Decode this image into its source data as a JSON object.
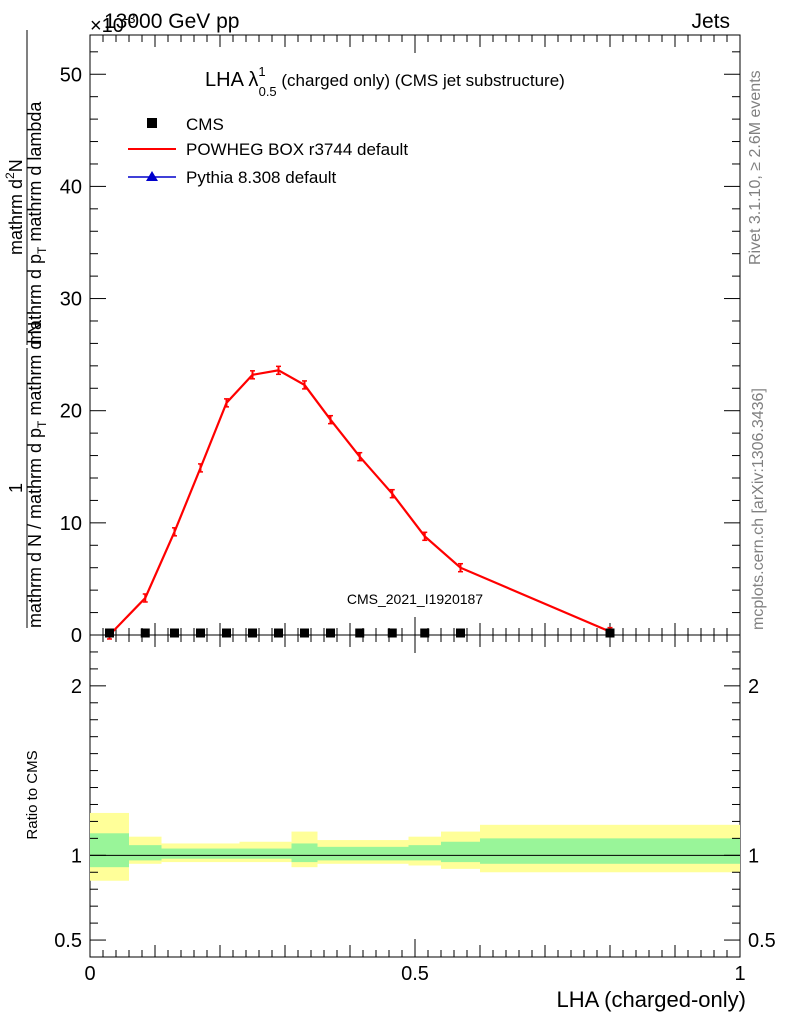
{
  "header": {
    "left": "13000 GeV pp",
    "right": "Jets",
    "exponent_label": "×10",
    "exponent_power": "-3"
  },
  "side_labels": {
    "rivet": "Rivet 3.1.10, ≥ 2.6M events",
    "mcplots": "mcplots.cern.ch [arXiv:1306.3436]"
  },
  "watermark": "CMS_2021_I1920187",
  "title": {
    "main": "LHA λ",
    "sup": "1",
    "sub": "0.5",
    "rest": " (charged only) (CMS jet substructure)"
  },
  "legend": {
    "cms": "CMS",
    "powheg": "POWHEG BOX r3744 default",
    "pythia": "Pythia 8.308 default"
  },
  "y_axis_title": {
    "numerator": "1",
    "denominator": "mathrm d N / mathrm d p",
    "denominator_sub": "T",
    "denominator_rest": " mathrm d N",
    "main_num": "mathrm d",
    "main_num_sup": "2",
    "main_num_rest": "N",
    "main_den": "mathrm d p",
    "main_den_sub": "T",
    "main_den_rest": " mathrm d lambda"
  },
  "ratio_axis_title": "Ratio to CMS",
  "x_axis_title": "LHA (charged-only)",
  "chart_data": [
    {
      "type": "line",
      "panel": "main",
      "xlim": [
        0,
        1
      ],
      "ylim": [
        0,
        53.5
      ],
      "y_scale_factor": "×10^-3",
      "y_ticks": [
        0,
        10,
        20,
        30,
        40,
        50
      ],
      "x_ticks": [
        0,
        0.5,
        1
      ],
      "series": [
        {
          "name": "POWHEG BOX r3744 default",
          "color": "#ff0000",
          "x": [
            0.03,
            0.085,
            0.13,
            0.17,
            0.21,
            0.25,
            0.29,
            0.33,
            0.37,
            0.415,
            0.465,
            0.515,
            0.57,
            0.8
          ],
          "y": [
            0.0,
            3.3,
            9.2,
            14.9,
            20.7,
            23.2,
            23.6,
            22.3,
            19.2,
            15.9,
            12.6,
            8.8,
            6.0,
            0.3
          ]
        },
        {
          "name": "Pythia 8.308 default",
          "color": "#0000ff",
          "x": [],
          "y": []
        },
        {
          "name": "CMS",
          "color": "#000000",
          "x": [
            0.03,
            0.085,
            0.13,
            0.17,
            0.21,
            0.25,
            0.29,
            0.33,
            0.37,
            0.415,
            0.465,
            0.515,
            0.57,
            0.8
          ],
          "y": [
            0,
            0,
            0,
            0,
            0,
            0,
            0,
            0,
            0,
            0,
            0,
            0,
            0,
            0
          ]
        }
      ]
    },
    {
      "type": "area",
      "panel": "ratio",
      "xlim": [
        0,
        1
      ],
      "ylim": [
        0.4,
        2.3
      ],
      "y_ticks": [
        0.5,
        1,
        2
      ],
      "x_ticks": [
        0,
        0.5,
        1
      ],
      "reference_line": 1,
      "bands": [
        {
          "x0": 0.0,
          "x1": 0.06,
          "yellow": [
            0.85,
            1.25
          ],
          "green": [
            0.93,
            1.13
          ]
        },
        {
          "x0": 0.06,
          "x1": 0.11,
          "yellow": [
            0.95,
            1.11
          ],
          "green": [
            0.97,
            1.06
          ]
        },
        {
          "x0": 0.11,
          "x1": 0.23,
          "yellow": [
            0.96,
            1.07
          ],
          "green": [
            0.98,
            1.04
          ]
        },
        {
          "x0": 0.23,
          "x1": 0.31,
          "yellow": [
            0.96,
            1.08
          ],
          "green": [
            0.98,
            1.04
          ]
        },
        {
          "x0": 0.31,
          "x1": 0.35,
          "yellow": [
            0.93,
            1.14
          ],
          "green": [
            0.96,
            1.07
          ]
        },
        {
          "x0": 0.35,
          "x1": 0.49,
          "yellow": [
            0.95,
            1.09
          ],
          "green": [
            0.97,
            1.05
          ]
        },
        {
          "x0": 0.49,
          "x1": 0.54,
          "yellow": [
            0.94,
            1.11
          ],
          "green": [
            0.97,
            1.06
          ]
        },
        {
          "x0": 0.54,
          "x1": 0.6,
          "yellow": [
            0.92,
            1.14
          ],
          "green": [
            0.96,
            1.08
          ]
        },
        {
          "x0": 0.6,
          "x1": 1.0,
          "yellow": [
            0.9,
            1.18
          ],
          "green": [
            0.95,
            1.1
          ]
        }
      ]
    }
  ]
}
